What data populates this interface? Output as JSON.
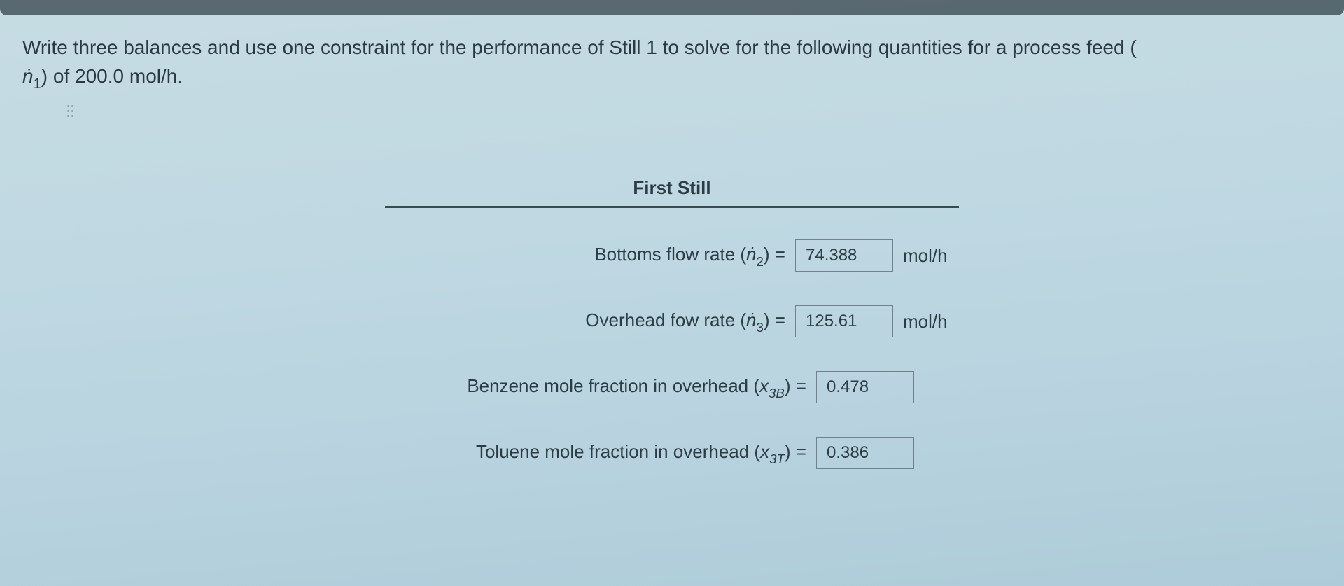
{
  "prompt": {
    "line1_a": "Write three balances and use one constraint for the performance of Still 1 to solve for the following quantities for a process feed (",
    "line2_var": "ṅ",
    "line2_sub": "1",
    "line2_b": ") of 200.0 mol/h."
  },
  "section_title": "First Still",
  "rows": {
    "bottoms": {
      "label_a": "Bottoms flow rate (",
      "var": "ṅ",
      "sub": "2",
      "label_b": ") =",
      "value": "74.388",
      "unit": "mol/h"
    },
    "overhead": {
      "label_a": "Overhead fow rate (",
      "var": "ṅ",
      "sub": "3",
      "label_b": ") =",
      "value": "125.61",
      "unit": "mol/h"
    },
    "benzene": {
      "label_a": "Benzene mole fraction in overhead (",
      "var": "x",
      "sub": "3B",
      "label_b": ") =",
      "value": "0.478",
      "unit": ""
    },
    "toluene": {
      "label_a": "Toluene mole fraction in overhead (",
      "var": "x",
      "sub": "3T",
      "label_b": ") =",
      "value": "0.386",
      "unit": ""
    }
  }
}
